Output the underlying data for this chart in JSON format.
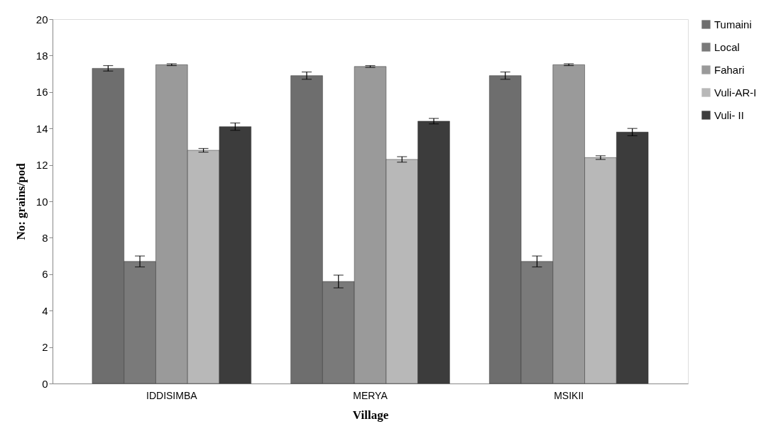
{
  "chart_data": {
    "type": "bar",
    "xlabel": "Village",
    "ylabel": "No: grains/pod",
    "categories": [
      "IDDISIMBA",
      "MERYA",
      "MSIKII"
    ],
    "ylim": [
      0,
      20
    ],
    "yticks": [
      0,
      2,
      4,
      6,
      8,
      10,
      12,
      14,
      16,
      18,
      20
    ],
    "grid": false,
    "legend": "right",
    "series": [
      {
        "name": "Tumaini",
        "color": "#6e6e6e",
        "values": [
          17.3,
          16.9,
          16.9
        ],
        "errors": [
          0.15,
          0.2,
          0.2
        ]
      },
      {
        "name": "Local",
        "color": "#7a7a7a",
        "values": [
          6.7,
          5.6,
          6.7
        ],
        "errors": [
          0.3,
          0.35,
          0.3
        ]
      },
      {
        "name": "Fahari",
        "color": "#9a9a9a",
        "values": [
          17.5,
          17.4,
          17.5
        ],
        "errors": [
          0.05,
          0.05,
          0.05
        ]
      },
      {
        "name": "Vuli-AR-I",
        "color": "#b8b8b8",
        "values": [
          12.8,
          12.3,
          12.4
        ],
        "errors": [
          0.1,
          0.15,
          0.1
        ]
      },
      {
        "name": "Vuli- II",
        "color": "#3c3c3c",
        "values": [
          14.1,
          14.4,
          13.8
        ],
        "errors": [
          0.2,
          0.15,
          0.2
        ]
      }
    ]
  }
}
